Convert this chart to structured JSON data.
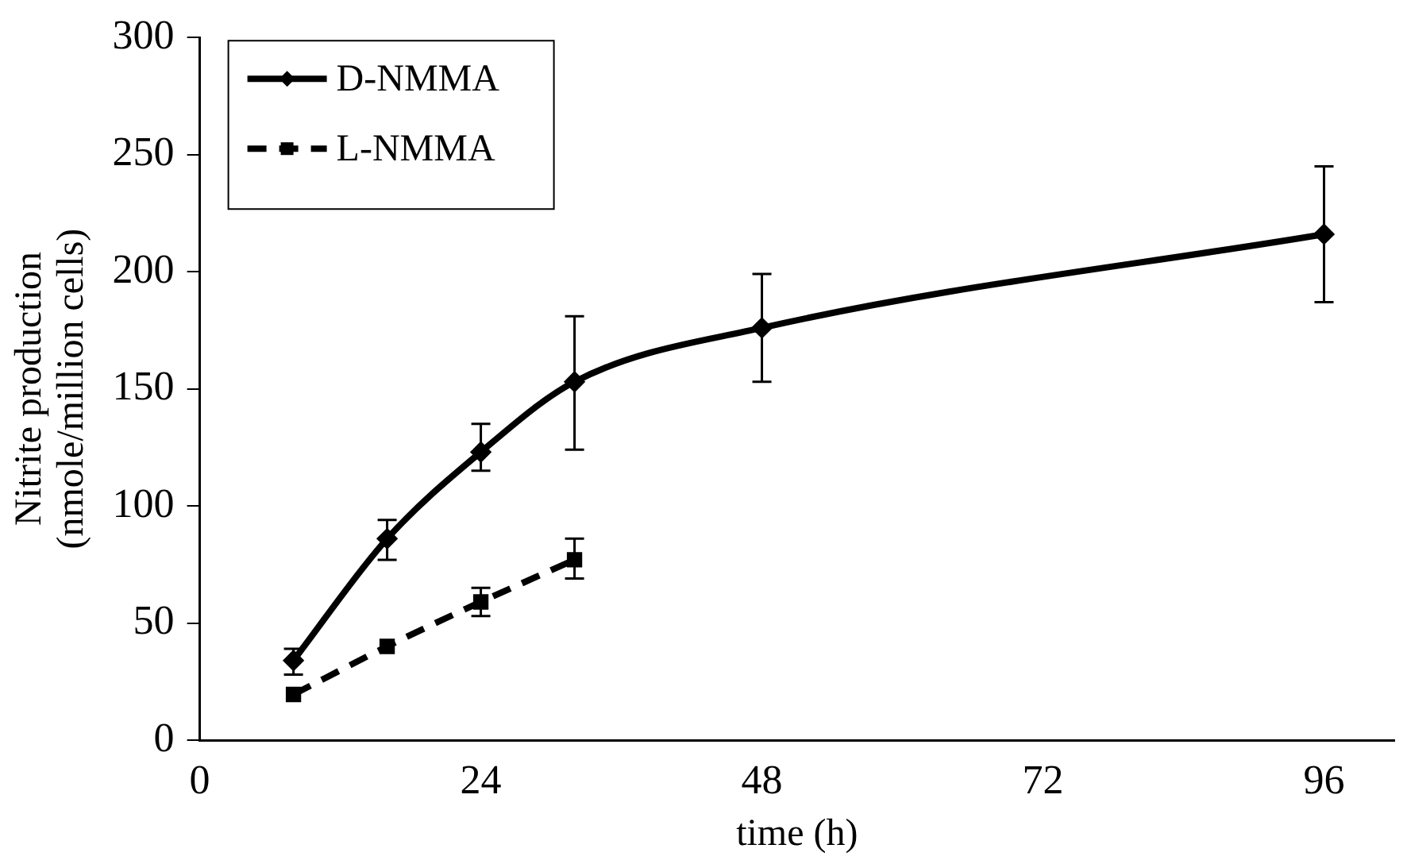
{
  "chart_data": {
    "type": "line",
    "xlabel": "time (h)",
    "ylabel": "Nitrite production\n(nmole/million cells)",
    "xlim": [
      0,
      102
    ],
    "xticks": [
      0,
      24,
      48,
      72,
      96
    ],
    "ylim": [
      0,
      300
    ],
    "yticks": [
      0,
      50,
      100,
      150,
      200,
      250,
      300
    ],
    "grid": false,
    "legend": "top left",
    "series": [
      {
        "name": "D-NMMA",
        "color": "#000000",
        "marker": "diamond",
        "line_style": "solid",
        "x": [
          8,
          16,
          24,
          32,
          48,
          96
        ],
        "values": [
          34,
          86,
          123,
          153,
          176,
          216
        ],
        "errors": [
          [
            28,
            39
          ],
          [
            77,
            94
          ],
          [
            115,
            135
          ],
          [
            124,
            181
          ],
          [
            153,
            199
          ],
          [
            187,
            245
          ]
        ]
      },
      {
        "name": "L-NMMA",
        "color": "#000000",
        "marker": "square",
        "line_style": "dashed",
        "x": [
          8,
          16,
          24,
          32
        ],
        "values": [
          19.5,
          40,
          59,
          77
        ],
        "errors": [
          null,
          null,
          [
            53,
            65
          ],
          [
            69,
            86
          ]
        ]
      }
    ]
  }
}
